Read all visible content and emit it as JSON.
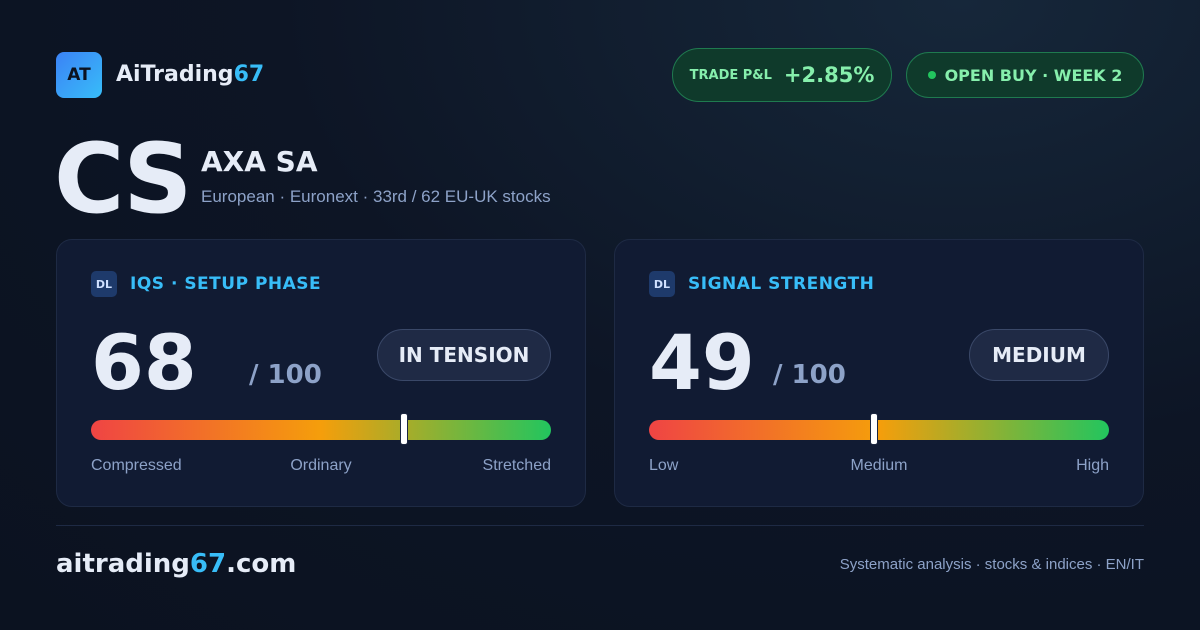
{
  "brand": {
    "logo": "AT",
    "name": "AiTrading",
    "accent": "67"
  },
  "trade_badge": {
    "label": "TRADE P&L",
    "value": "+2.85%"
  },
  "status_badge": {
    "label": "OPEN BUY · WEEK 2"
  },
  "ticker": {
    "symbol": "CS",
    "name": "AXA SA",
    "subtitle": "European · Euronext · 33rd / 62 EU-UK stocks"
  },
  "cards": [
    {
      "icon": "DL",
      "title": "IQS · SETUP PHASE",
      "score": 68,
      "max": 100,
      "max_label": "/ 100",
      "pill": "IN TENSION",
      "scale_labels": [
        "Compressed",
        "Ordinary",
        "Stretched"
      ]
    },
    {
      "icon": "DL",
      "title": "SIGNAL STRENGTH",
      "score": 49,
      "max": 100,
      "max_label": "/ 100",
      "pill": "MEDIUM",
      "scale_labels": [
        "Low",
        "Medium",
        "High"
      ]
    }
  ],
  "footer": {
    "domain": {
      "name": "aitrading",
      "accent": "67",
      "suffix": ".com"
    },
    "tagline": "Systematic analysis · stocks & indices · EN/IT"
  }
}
